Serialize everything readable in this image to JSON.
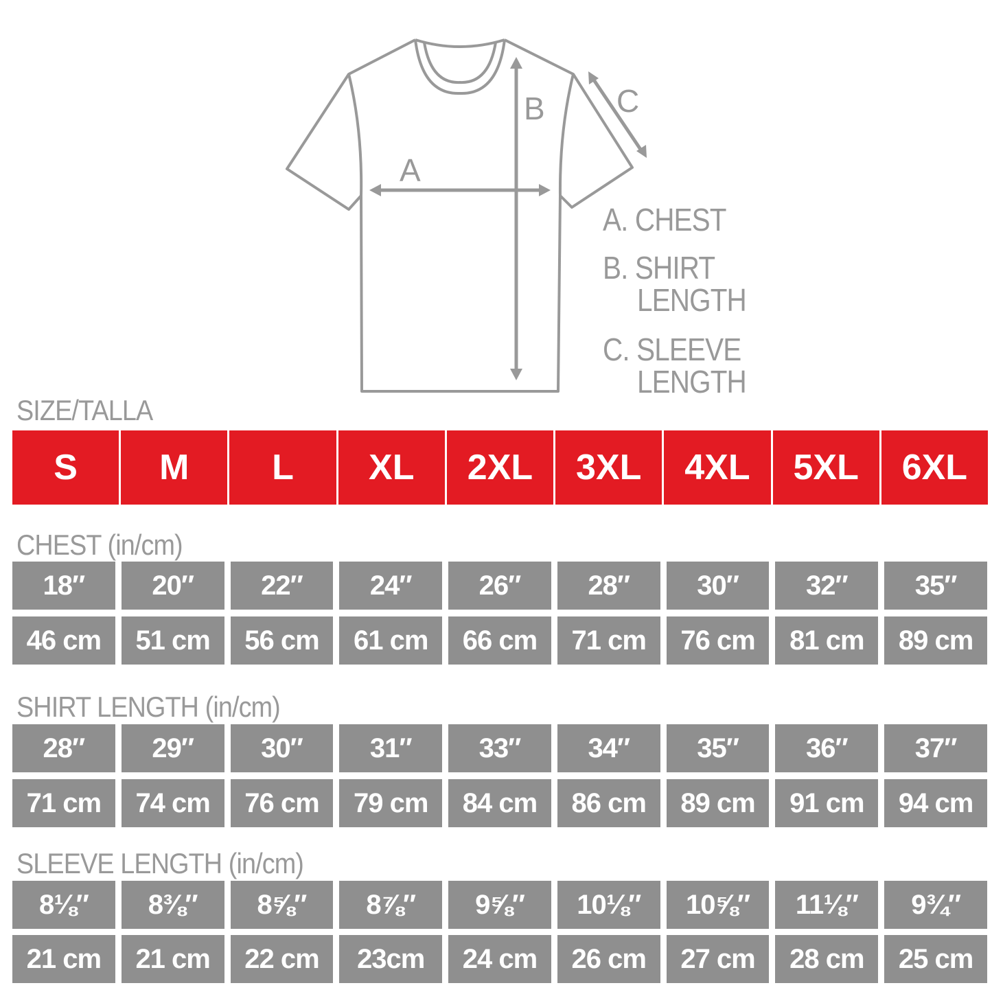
{
  "diagram": {
    "arrow_labels": {
      "a": "A",
      "b": "B",
      "c": "C"
    },
    "legend": {
      "a": "A. CHEST",
      "b_line1": "B. SHIRT",
      "b_line2": "LENGTH",
      "c_line1": "C. SLEEVE",
      "c_line2": "LENGTH"
    },
    "line_color": "#999999"
  },
  "size_label": "SIZE/TALLA",
  "sizes": [
    "S",
    "M",
    "L",
    "XL",
    "2XL",
    "3XL",
    "4XL",
    "5XL",
    "6XL"
  ],
  "header_color": "#e31b23",
  "cell_color": "#8f8f8f",
  "sections": [
    {
      "label": "CHEST (in/cm)",
      "inches": [
        "18″",
        "20″",
        "22″",
        "24″",
        "26″",
        "28″",
        "30″",
        "32″",
        "35″"
      ],
      "cm": [
        "46 cm",
        "51 cm",
        "56 cm",
        "61 cm",
        "66 cm",
        "71 cm",
        "76 cm",
        "81 cm",
        "89 cm"
      ]
    },
    {
      "label": "SHIRT LENGTH (in/cm)",
      "inches": [
        "28″",
        "29″",
        "30″",
        "31″",
        "33″",
        "34″",
        "35″",
        "36″",
        "37″"
      ],
      "cm": [
        "71 cm",
        "74 cm",
        "76 cm",
        "79 cm",
        "84 cm",
        "86 cm",
        "89 cm",
        "91 cm",
        "94 cm"
      ]
    },
    {
      "label": "SLEEVE LENGTH (in/cm)",
      "inches": [
        "8⅛″",
        "8⅜″",
        "8⅝″",
        "8⅞″",
        "9⅝″",
        "10⅛″",
        "10⅝″",
        "11⅛″",
        "9¾″"
      ],
      "cm": [
        "21 cm",
        "21 cm",
        "22 cm",
        "23cm",
        "24 cm",
        "26 cm",
        "27 cm",
        "28 cm",
        "25 cm"
      ]
    }
  ]
}
